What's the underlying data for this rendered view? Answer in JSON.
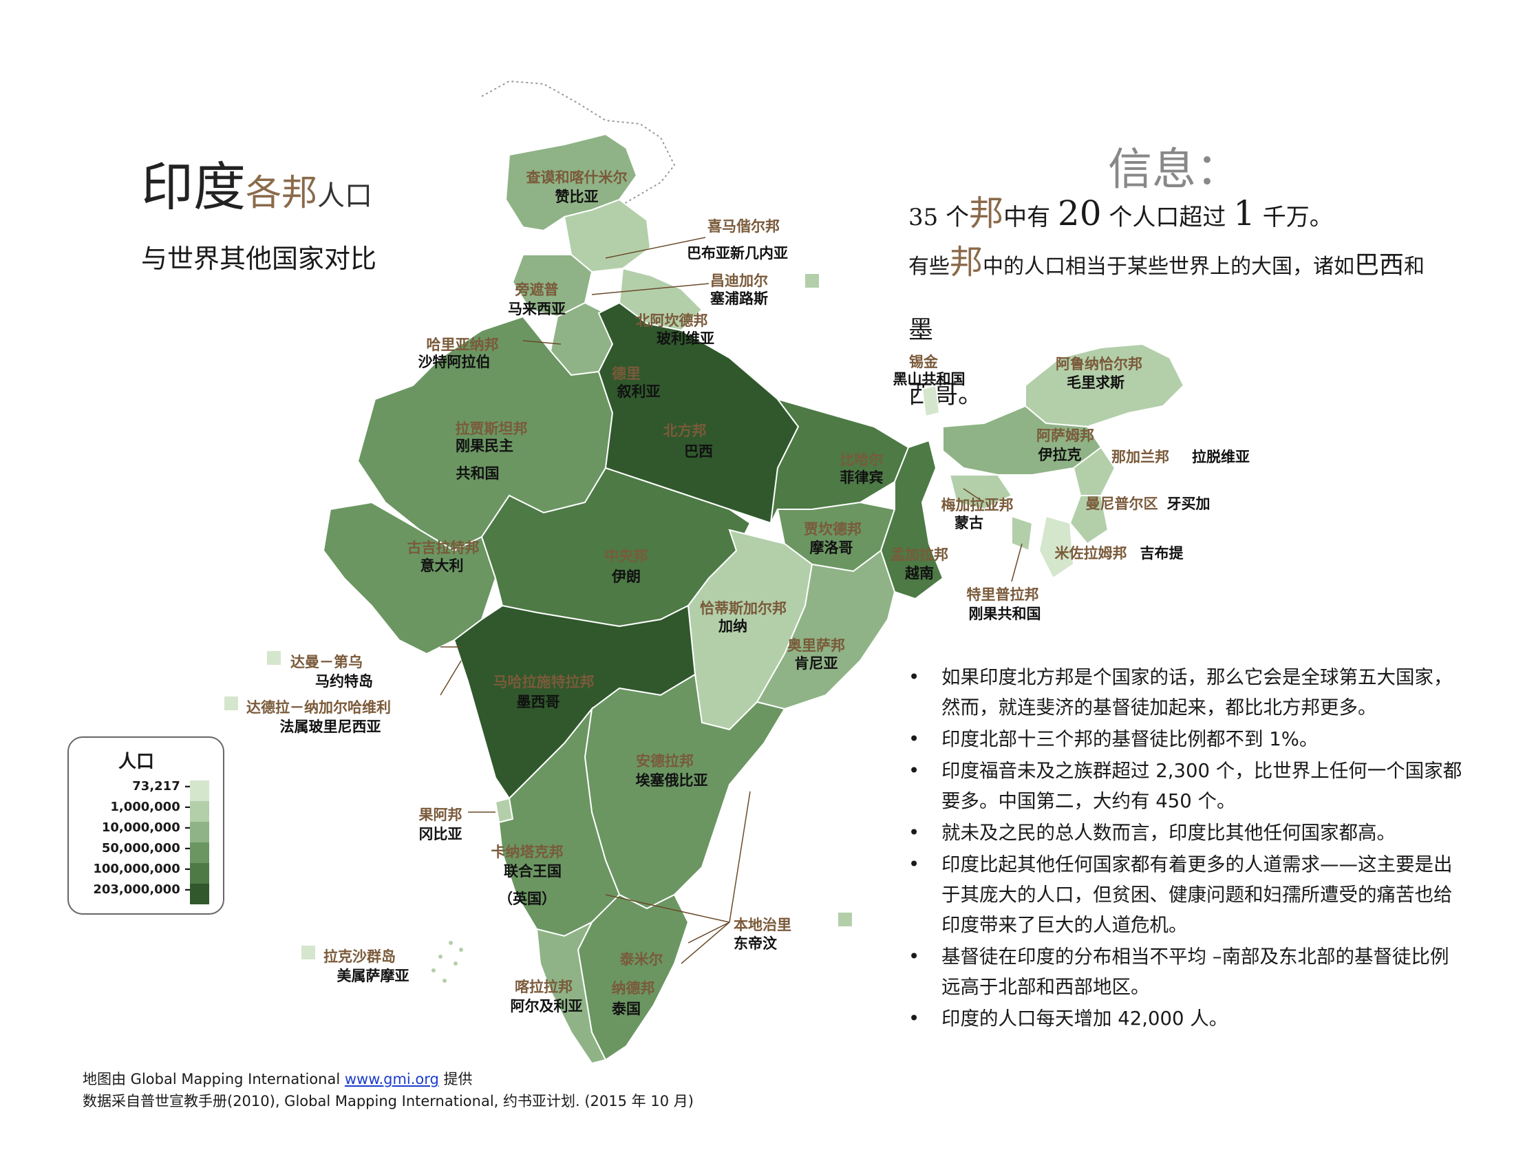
{
  "header": {
    "title_big": "印度",
    "title_mid": "各邦",
    "title_small": "人口",
    "subtitle": "与世界其他国家对比"
  },
  "info": {
    "heading": "信息：",
    "line1": {
      "a": "35 个",
      "b": "邦",
      "c": "中有",
      "d": "20",
      "e": "个人口超过",
      "f": "1",
      "g": "千万。"
    },
    "line2": {
      "a": "有些",
      "b": "邦",
      "c": "中的人口相当于某些世界上的大国，诸如",
      "d": "巴西",
      "e": "和",
      "f": "墨",
      "g": "西哥。"
    }
  },
  "bullets": [
    "如果印度北方邦是个国家的话，那么它会是全球第五大国家，然而，就连斐济的基督徒加起来，都比北方邦更多。",
    "印度北部十三个邦的基督徒比例都不到 1%。",
    "印度福音未及之族群超过 2,300 个，比世界上任何一个国家都要多。中国第二，大约有 450 个。",
    "就未及之民的总人数而言，印度比其他任何国家都高。",
    "印度比起其他任何国家都有着更多的人道需求——这主要是出于其庞大的人口，但贫困、健康问题和妇孺所遭受的痛苦也给印度带来了巨大的人道危机。",
    "基督徒在印度的分布相当不平均 –南部及东北部的基督徒比例远高于北部和西部地区。",
    "印度的人口每天增加 42,000 人。"
  ],
  "credits": {
    "line1_pre": "地图由 Global Mapping International  ",
    "line1_link": "www.gmi.org",
    "line1_post": " 提供",
    "line2": "数据采自普世宣教手册(2010), Global Mapping International, 约书亚计划. (2015 年 10 月)"
  },
  "legend": {
    "title": "人口",
    "rows": [
      {
        "label": "73,217 —",
        "color": "#d4e6cc"
      },
      {
        "label": "1,000,000 —",
        "color": "#b3cfaa"
      },
      {
        "label": "10,000,000 —",
        "color": "#8fb386"
      },
      {
        "label": "50,000,000 —",
        "color": "#6b9662"
      },
      {
        "label": "100,000,000 —",
        "color": "#4d7a45"
      },
      {
        "label": "203,000,000 —",
        "color": "#30582c"
      }
    ]
  },
  "map_labels": [
    {
      "state": "查谟和喀什米尔",
      "country": "赞比亚"
    },
    {
      "state": "喜马偕尔邦",
      "country": "巴布亚新几内亚"
    },
    {
      "state": "旁遮普",
      "country": "马来西亚"
    },
    {
      "state": "昌迪加尔",
      "country": "塞浦路斯"
    },
    {
      "state": "北阿坎德邦",
      "country": "玻利维亚"
    },
    {
      "state": "哈里亚纳邦",
      "country": "沙特阿拉伯"
    },
    {
      "state": "德里",
      "country": "叙利亚"
    },
    {
      "state": "拉贾斯坦邦",
      "country": "刚果民主"
    },
    {
      "state": "",
      "country": "共和国"
    },
    {
      "state": "北方邦",
      "country": "巴西"
    },
    {
      "state": "锡金",
      "country": "黑山共和国"
    },
    {
      "state": "阿鲁纳恰尔邦",
      "country": "毛里求斯"
    },
    {
      "state": "阿萨姆邦",
      "country": "伊拉克"
    },
    {
      "state": "那加兰邦",
      "country": "拉脱维亚"
    },
    {
      "state": "比哈尔",
      "country": "菲律宾"
    },
    {
      "state": "梅加拉亚邦",
      "country": "蒙古"
    },
    {
      "state": "曼尼普尔区",
      "country": "牙买加"
    },
    {
      "state": "古吉拉特邦",
      "country": "意大利"
    },
    {
      "state": "中央邦",
      "country": "伊朗"
    },
    {
      "state": "贾坎德邦",
      "country": "摩洛哥"
    },
    {
      "state": "孟加拉邦",
      "country": "越南"
    },
    {
      "state": "米佐拉姆邦",
      "country": "吉布提"
    },
    {
      "state": "特里普拉邦",
      "country": "刚果共和国"
    },
    {
      "state": "恰蒂斯加尔邦",
      "country": "加纳"
    },
    {
      "state": "奥里萨邦",
      "country": "肯尼亚"
    },
    {
      "state": "达曼－第乌",
      "country": "马约特岛"
    },
    {
      "state": "达德拉－纳加尔哈维利",
      "country": "法属玻里尼西亚"
    },
    {
      "state": "马哈拉施特拉邦",
      "country": "墨西哥"
    },
    {
      "state": "安德拉邦",
      "country": "埃塞俄比亚"
    },
    {
      "state": "果阿邦",
      "country": "冈比亚"
    },
    {
      "state": "卡纳塔克邦",
      "country": "联合王国"
    },
    {
      "state": "",
      "country": "（英国）"
    },
    {
      "state": "本地治里",
      "country": "东帝汶"
    },
    {
      "state": "拉克沙群岛",
      "country": "美属萨摩亚"
    },
    {
      "state": "泰米尔",
      "country": ""
    },
    {
      "state": "喀拉拉邦",
      "country": "阿尔及利亚"
    },
    {
      "state": "纳德邦",
      "country": "泰国"
    }
  ]
}
